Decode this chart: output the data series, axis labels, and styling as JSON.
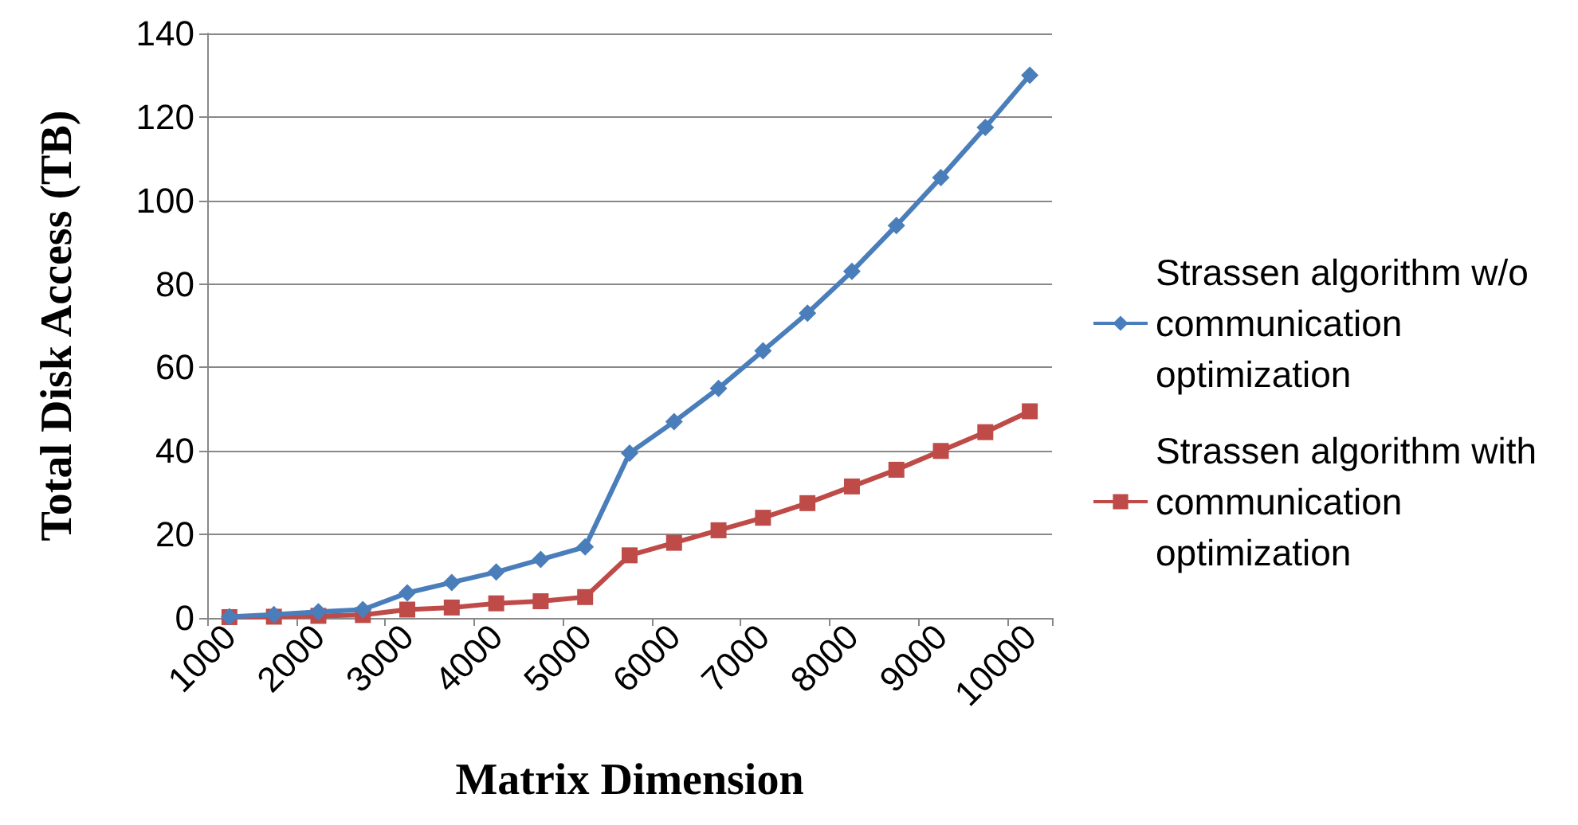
{
  "chart_data": {
    "type": "line",
    "xlabel": "Matrix Dimension",
    "ylabel": "Total Disk Access (TB)",
    "categories": [
      "1000",
      null,
      "2000",
      null,
      "3000",
      null,
      "4000",
      null,
      "5000",
      null,
      "6000",
      null,
      "7000",
      null,
      "8000",
      null,
      "9000",
      null,
      "10000"
    ],
    "series": [
      {
        "name": "Strassen algorithm w/o communication optimization",
        "color": "#4a7ebb",
        "marker": "diamond",
        "values": [
          0.3,
          0.8,
          1.5,
          2,
          6,
          8.5,
          11,
          14,
          17,
          39.5,
          47,
          55,
          64,
          73,
          83,
          94,
          105.5,
          117.5,
          130
        ]
      },
      {
        "name": "Strassen algorithm with communication optimization",
        "color": "#be4b48",
        "marker": "square",
        "values": [
          0.2,
          0.3,
          0.5,
          0.7,
          2,
          2.5,
          3.5,
          4,
          5,
          15,
          18,
          21,
          24,
          27.5,
          31.5,
          35.5,
          40,
          44.5,
          49.5
        ]
      }
    ],
    "ylim": [
      0,
      140
    ],
    "yticks": [
      0,
      20,
      40,
      60,
      80,
      100,
      120,
      140
    ],
    "grid": "y",
    "legend": "right",
    "line_style": "solid"
  }
}
